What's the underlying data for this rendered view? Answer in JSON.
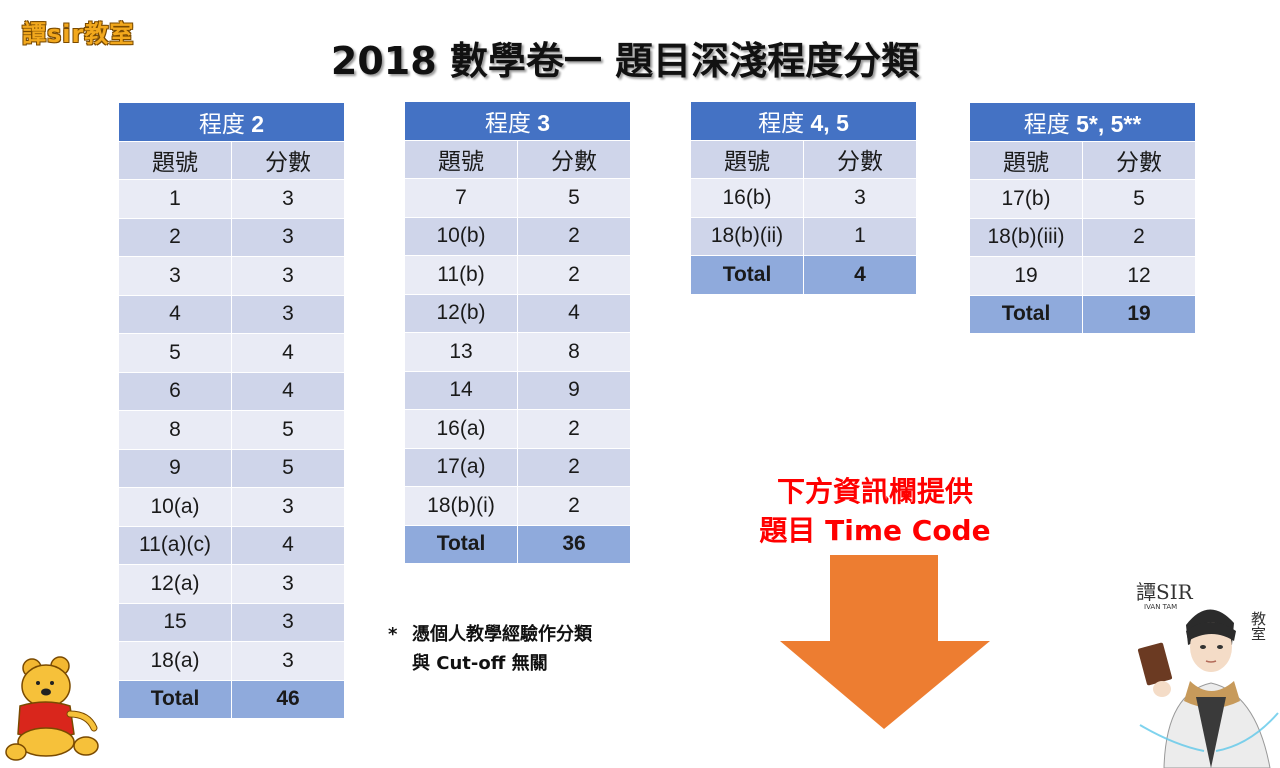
{
  "brand": "譚sir教室",
  "title": "2018  數學卷一  題目深淺程度分類",
  "tables": {
    "t2": {
      "label": "程度 ",
      "level": "2",
      "col_q": "題號",
      "col_s": "分數",
      "rows": [
        [
          "1",
          "3"
        ],
        [
          "2",
          "3"
        ],
        [
          "3",
          "3"
        ],
        [
          "4",
          "3"
        ],
        [
          "5",
          "4"
        ],
        [
          "6",
          "4"
        ],
        [
          "8",
          "5"
        ],
        [
          "9",
          "5"
        ],
        [
          "10(a)",
          "3"
        ],
        [
          "11(a)(c)",
          "4"
        ],
        [
          "12(a)",
          "3"
        ],
        [
          "15",
          "3"
        ],
        [
          "18(a)",
          "3"
        ]
      ],
      "total_label": "Total",
      "total": "46"
    },
    "t3": {
      "label": "程度 ",
      "level": "3",
      "col_q": "題號",
      "col_s": "分數",
      "rows": [
        [
          "7",
          "5"
        ],
        [
          "10(b)",
          "2"
        ],
        [
          "11(b)",
          "2"
        ],
        [
          "12(b)",
          "4"
        ],
        [
          "13",
          "8"
        ],
        [
          "14",
          "9"
        ],
        [
          "16(a)",
          "2"
        ],
        [
          "17(a)",
          "2"
        ],
        [
          "18(b)(i)",
          "2"
        ]
      ],
      "total_label": "Total",
      "total": "36"
    },
    "t45": {
      "label": "程度 ",
      "level": "4, 5",
      "col_q": "題號",
      "col_s": "分數",
      "rows": [
        [
          "16(b)",
          "3"
        ],
        [
          "18(b)(ii)",
          "1"
        ]
      ],
      "total_label": "Total",
      "total": "4"
    },
    "t5s": {
      "label": "程度 ",
      "level": "5*, 5**",
      "col_q": "題號",
      "col_s": "分數",
      "rows": [
        [
          "17(b)",
          "5"
        ],
        [
          "18(b)(iii)",
          "2"
        ],
        [
          "19",
          "12"
        ]
      ],
      "total_label": "Total",
      "total": "19"
    }
  },
  "note": {
    "star": "*",
    "line1": "憑個人教學經驗作分類",
    "line2": "與 Cut-off 無關"
  },
  "info": {
    "line1": "下方資訊欄提供",
    "line2": "題目 Time Code"
  },
  "tutor_logo": {
    "name": "譚SIR",
    "sub": "IVAN TAM",
    "classroom": "教室"
  },
  "colors": {
    "header_blue": "#4472c4",
    "row_light": "#e9ebf5",
    "row_dark": "#cfd5ea",
    "total_row": "#8faadc",
    "brand_orange": "#f2a81d",
    "info_red": "#ff0000",
    "arrow_orange": "#ed7d31"
  },
  "icons": {
    "arrow": "down-arrow-icon",
    "mascot": "winnie-the-pooh-icon",
    "avatar": "tutor-avatar"
  }
}
